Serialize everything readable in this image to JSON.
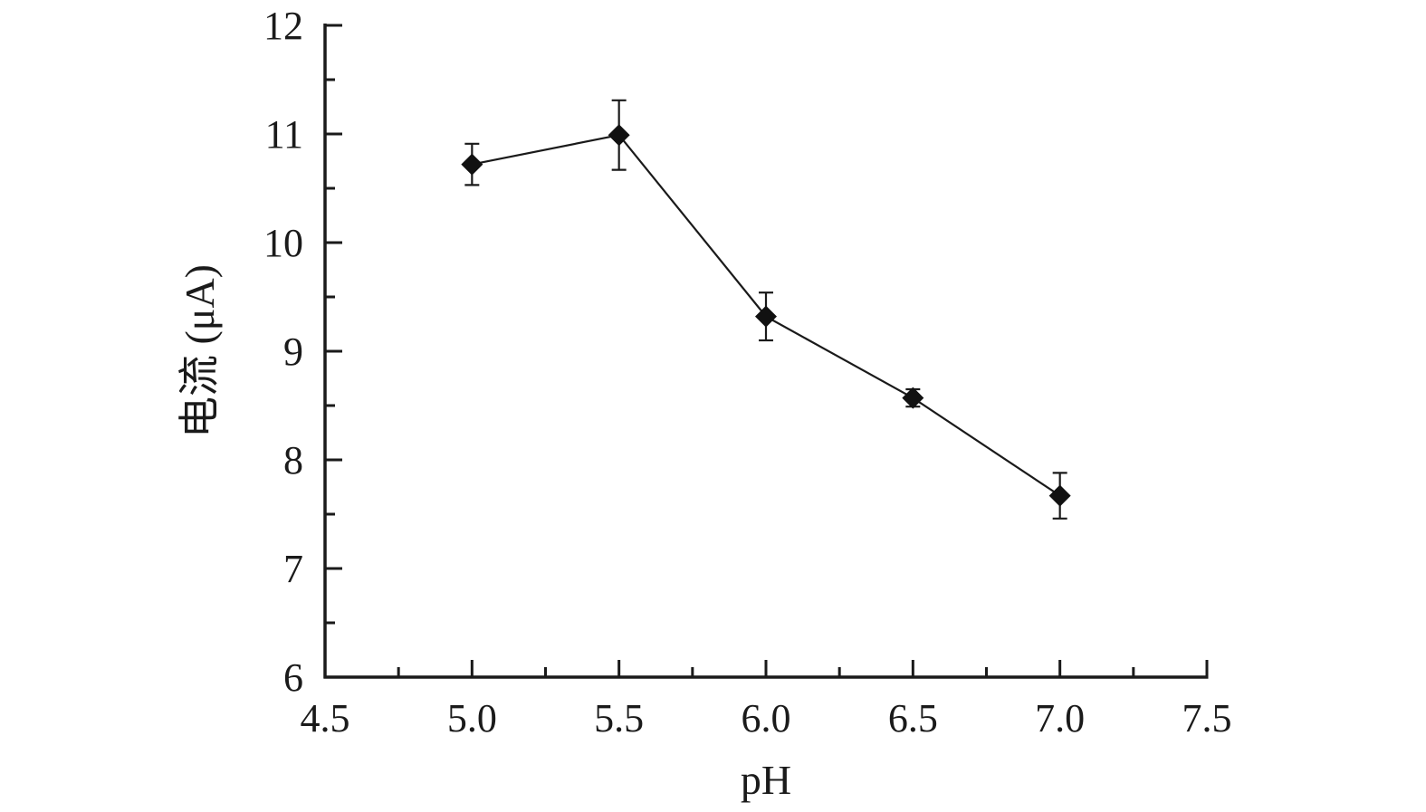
{
  "chart_data": {
    "type": "line",
    "title": "",
    "xlabel": "pH",
    "ylabel": "电流 (μA)",
    "xlim": [
      4.5,
      7.5
    ],
    "ylim": [
      6,
      12
    ],
    "x_major_ticks": [
      4.5,
      5.0,
      5.5,
      6.0,
      6.5,
      7.0,
      7.5
    ],
    "x_tick_labels": [
      "4.5",
      "5.0",
      "5.5",
      "6.0",
      "6.5",
      "7.0",
      "7.5"
    ],
    "y_major_ticks": [
      6,
      7,
      8,
      9,
      10,
      11,
      12
    ],
    "y_tick_labels": [
      "6",
      "7",
      "8",
      "9",
      "10",
      "11",
      "12"
    ],
    "grid": false,
    "legend": "none",
    "marker": "diamond",
    "series": [
      {
        "x": [
          5.0,
          5.5,
          6.0,
          6.5,
          7.0
        ],
        "y": [
          10.72,
          10.99,
          9.32,
          8.57,
          7.67
        ],
        "error": [
          0.19,
          0.32,
          0.22,
          0.08,
          0.21
        ]
      }
    ],
    "colors": {
      "axis": "#1a1a1a",
      "line": "#1a1a1a",
      "marker": "#111111"
    }
  }
}
